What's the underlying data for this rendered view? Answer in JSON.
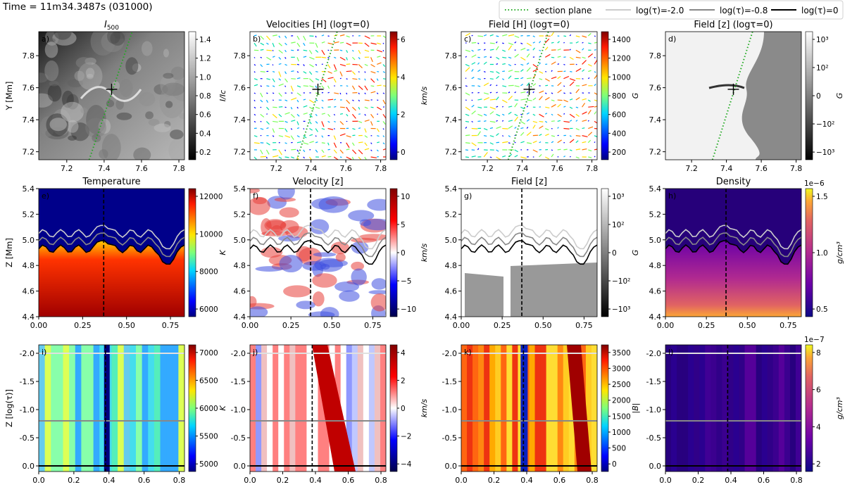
{
  "figure": {
    "time_label": "Time = 11m34.3487s (031000)",
    "legend": [
      {
        "label": "section plane",
        "color": "#22aa22",
        "style": "dotted"
      },
      {
        "label": "log(τ)=-2.0",
        "color": "#cccccc",
        "style": "solid"
      },
      {
        "label": "log(τ)=-0.8",
        "color": "#888888",
        "style": "solid"
      },
      {
        "label": "log(τ)=0",
        "color": "#000000",
        "style": "solid"
      }
    ]
  },
  "chart_data": [
    {
      "type": "heatmap",
      "panel": "a)",
      "title": "I500",
      "title_sub": "500",
      "colormap": "gray",
      "cbar_label": "I/Ic",
      "cbar_ticks": [
        "1.4",
        "1.2",
        "1.0",
        "0.8",
        "0.6",
        "0.4",
        "0.2"
      ],
      "xticks": [
        "7.2",
        "7.4",
        "7.6",
        "7.8"
      ],
      "ylabel": "Y [Mm]",
      "yticks": [
        "7.8",
        "7.6",
        "7.4",
        "7.2"
      ],
      "xlim": [
        7.05,
        7.83
      ],
      "ylim": [
        7.15,
        7.95
      ],
      "section_plane": [
        [
          7.32,
          7.15
        ],
        [
          7.55,
          7.95
        ]
      ],
      "cross": [
        7.44,
        7.59
      ]
    },
    {
      "type": "quiver",
      "panel": "b)",
      "title": "Velocities [H] (logτ=0)",
      "colormap": "jet",
      "cbar_label": "km/s",
      "cbar_ticks": [
        "6",
        "4",
        "2",
        "0"
      ],
      "xticks": [
        "7.2",
        "7.4",
        "7.6",
        "7.8"
      ],
      "ylabel": "",
      "yticks": [
        "7.8",
        "7.6",
        "7.4",
        "7.2"
      ],
      "xlim": [
        7.05,
        7.83
      ],
      "ylim": [
        7.15,
        7.95
      ],
      "section_plane": [
        [
          7.32,
          7.15
        ],
        [
          7.55,
          7.95
        ]
      ],
      "cross": [
        7.44,
        7.59
      ]
    },
    {
      "type": "quiver",
      "panel": "c)",
      "title": "Field [H] (logτ=0)",
      "colormap": "jet",
      "cbar_label": "G",
      "cbar_ticks": [
        "1400",
        "1200",
        "1000",
        "800",
        "600",
        "400",
        "200"
      ],
      "xticks": [
        "7.2",
        "7.4",
        "7.6",
        "7.8"
      ],
      "ylabel": "",
      "yticks": [
        "7.8",
        "7.6",
        "7.4",
        "7.2"
      ],
      "xlim": [
        7.05,
        7.83
      ],
      "ylim": [
        7.15,
        7.95
      ],
      "section_plane": [
        [
          7.32,
          7.15
        ],
        [
          7.55,
          7.95
        ]
      ],
      "cross": [
        7.44,
        7.59
      ]
    },
    {
      "type": "heatmap",
      "panel": "d)",
      "title": "Field [z] (logτ=0)",
      "colormap": "gray",
      "cbar_label": "G",
      "cbar_ticks": [
        "10³",
        "10²",
        "0",
        "−10²",
        "−10³"
      ],
      "xticks": [
        "7.2",
        "7.4",
        "7.6",
        "7.8"
      ],
      "ylabel": "",
      "yticks": [
        "7.8",
        "7.6",
        "7.4",
        "7.2"
      ],
      "xlim": [
        7.05,
        7.83
      ],
      "ylim": [
        7.15,
        7.95
      ],
      "section_plane": [
        [
          7.32,
          7.15
        ],
        [
          7.55,
          7.95
        ]
      ],
      "cross": [
        7.44,
        7.59
      ]
    },
    {
      "type": "heatmap",
      "panel": "e)",
      "title": "Temperature",
      "colormap": "jet",
      "cbar_label": "K",
      "cbar_ticks": [
        "12000",
        "10000",
        "8000",
        "6000"
      ],
      "xticks": [
        "0.00",
        "0.25",
        "0.50",
        "0.75"
      ],
      "ylabel": "Z [Mm]",
      "yticks": [
        "5.4",
        "5.2",
        "5.0",
        "4.8",
        "4.6",
        "4.4"
      ],
      "xlim": [
        0,
        0.83
      ],
      "ylim": [
        4.4,
        5.4
      ],
      "section_x": 0.37
    },
    {
      "type": "heatmap",
      "panel": "f)",
      "title": "Velocity [z]",
      "colormap": "bwr",
      "cbar_label": "km/s",
      "cbar_ticks": [
        "10",
        "5",
        "0",
        "−5",
        "−10"
      ],
      "xticks": [
        "0.00",
        "0.25",
        "0.50",
        "0.75"
      ],
      "ylabel": "",
      "yticks": [
        "5.4",
        "5.2",
        "5.0",
        "4.8",
        "4.6",
        "4.4"
      ],
      "xlim": [
        0,
        0.83
      ],
      "ylim": [
        4.4,
        5.4
      ],
      "section_x": 0.37
    },
    {
      "type": "heatmap",
      "panel": "g)",
      "title": "Field [z]",
      "colormap": "gray",
      "cbar_label": "G",
      "cbar_ticks": [
        "10³",
        "10²",
        "0",
        "−10²",
        "−10³"
      ],
      "xticks": [
        "0.00",
        "0.25",
        "0.50",
        "0.75"
      ],
      "ylabel": "",
      "yticks": [
        "5.4",
        "5.2",
        "5.0",
        "4.8",
        "4.6",
        "4.4"
      ],
      "xlim": [
        0,
        0.83
      ],
      "ylim": [
        4.4,
        5.4
      ],
      "section_x": 0.37
    },
    {
      "type": "heatmap",
      "panel": "h)",
      "title": "Density",
      "colormap": "plasma",
      "cbar_label": "g/cm³",
      "cbar_exponent": "1e−6",
      "cbar_ticks": [
        "1.5",
        "1.0",
        "0.5"
      ],
      "xticks": [
        "0.00",
        "0.25",
        "0.50",
        "0.75"
      ],
      "ylabel": "",
      "yticks": [
        "5.4",
        "5.2",
        "5.0",
        "4.8",
        "4.6",
        "4.4"
      ],
      "xlim": [
        0,
        0.83
      ],
      "ylim": [
        4.4,
        5.4
      ],
      "section_x": 0.37
    },
    {
      "type": "heatmap",
      "panel": "i)",
      "title": "",
      "colormap": "jet",
      "cbar_label": "K",
      "cbar_ticks": [
        "7000",
        "6500",
        "6000",
        "5500",
        "5000"
      ],
      "xticks": [
        "0.0",
        "0.2",
        "0.4",
        "0.6",
        "0.8"
      ],
      "ylabel": "Z [log(τ)]",
      "yticks": [
        "-2.0",
        "-1.5",
        "-1.0",
        "-0.5",
        "0.0"
      ],
      "xlim": [
        0,
        0.83
      ],
      "ylim": [
        0.1,
        -2.15
      ],
      "section_x": 0.38,
      "tau_lines": [
        -2.0,
        -0.8,
        0.0
      ]
    },
    {
      "type": "heatmap",
      "panel": "j)",
      "title": "",
      "colormap": "bwr",
      "cbar_label": "km/s",
      "cbar_ticks": [
        "4",
        "2",
        "0",
        "−2",
        "−4"
      ],
      "xticks": [
        "0.0",
        "0.2",
        "0.4",
        "0.6",
        "0.8"
      ],
      "ylabel": "",
      "yticks": [
        "-2.0",
        "-1.5",
        "-1.0",
        "-0.5",
        "0.0"
      ],
      "xlim": [
        0,
        0.83
      ],
      "ylim": [
        0.1,
        -2.15
      ],
      "section_x": 0.38,
      "tau_lines": [
        -2.0,
        -0.8,
        0.0
      ]
    },
    {
      "type": "heatmap",
      "panel": "k)",
      "title": "",
      "colormap": "jet",
      "cbar_label": "|B|",
      "cbar_ticks": [
        "3500",
        "3000",
        "2500",
        "2000",
        "1500",
        "1000",
        "500",
        "0"
      ],
      "xticks": [
        "0.0",
        "0.2",
        "0.4",
        "0.6",
        "0.8"
      ],
      "ylabel": "",
      "yticks": [
        "-2.0",
        "-1.5",
        "-1.0",
        "-0.5",
        "0.0"
      ],
      "xlim": [
        0,
        0.83
      ],
      "ylim": [
        0.1,
        -2.15
      ],
      "section_x": 0.38,
      "tau_lines": [
        -2.0,
        -0.8,
        0.0
      ]
    },
    {
      "type": "heatmap",
      "panel": "l)",
      "title": "",
      "colormap": "plasma",
      "cbar_label": "g/cm³",
      "cbar_exponent": "1e−7",
      "cbar_ticks": [
        "8",
        "6",
        "4",
        "2"
      ],
      "xticks": [
        "0.0",
        "0.2",
        "0.4",
        "0.6",
        "0.8"
      ],
      "ylabel": "",
      "yticks": [
        "-2.0",
        "-1.5",
        "-1.0",
        "-0.5",
        "0.0"
      ],
      "xlim": [
        0,
        0.83
      ],
      "ylim": [
        0.1,
        -2.15
      ],
      "section_x": 0.38,
      "tau_lines": [
        -2.0,
        -0.8,
        0.0
      ]
    }
  ]
}
